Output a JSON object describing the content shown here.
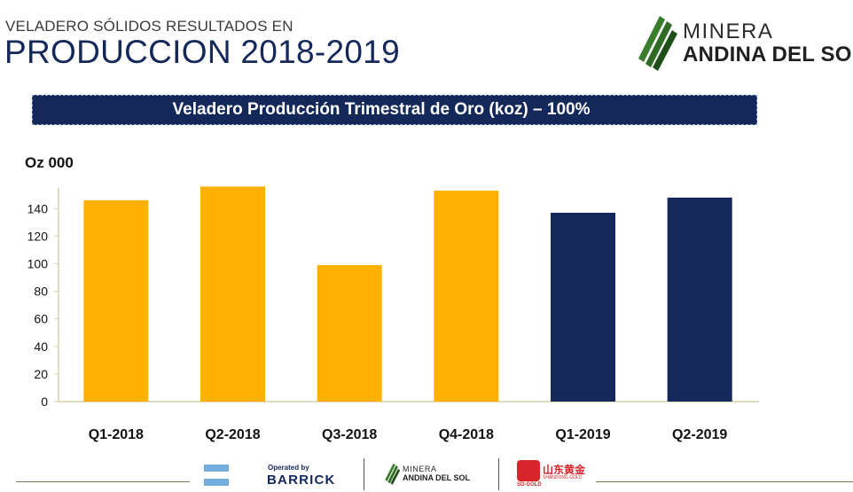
{
  "header": {
    "supertitle": "VELADERO SÓLIDOS RESULTADOS EN",
    "title": "PRODUCCION 2018-2019"
  },
  "brand": {
    "line1": "MINERA",
    "line2": "ANDINA DEL SOL"
  },
  "colors": {
    "navy": "#14285a",
    "gold": "#ffb000",
    "logo_green": "#3a7d2c"
  },
  "chart_data": {
    "type": "bar",
    "title": "Veladero Producción Trimestral de Oro (koz) – 100%",
    "ylabel": "Oz 000",
    "xlabel": "",
    "ylim": [
      0,
      155
    ],
    "yticks": [
      0,
      20,
      40,
      60,
      80,
      100,
      120,
      140
    ],
    "categories": [
      "Q1-2018",
      "Q2-2018",
      "Q3-2018",
      "Q4-2018",
      "Q1-2019",
      "Q2-2019"
    ],
    "values": [
      146,
      156,
      99,
      153,
      137,
      148
    ],
    "bar_colors": [
      "#ffb000",
      "#ffb000",
      "#ffb000",
      "#ffb000",
      "#14285a",
      "#14285a"
    ],
    "grid": false,
    "legend": "none"
  },
  "footer": {
    "barrick_small": "Operated by",
    "barrick_name": "BARRICK",
    "mini_line1": "MINERA",
    "mini_line2": "ANDINA DEL SOL",
    "sd_cn": "山东黄金",
    "sd_en": "SHANDONG GOLD",
    "sd_label": "SD-GOLD"
  }
}
